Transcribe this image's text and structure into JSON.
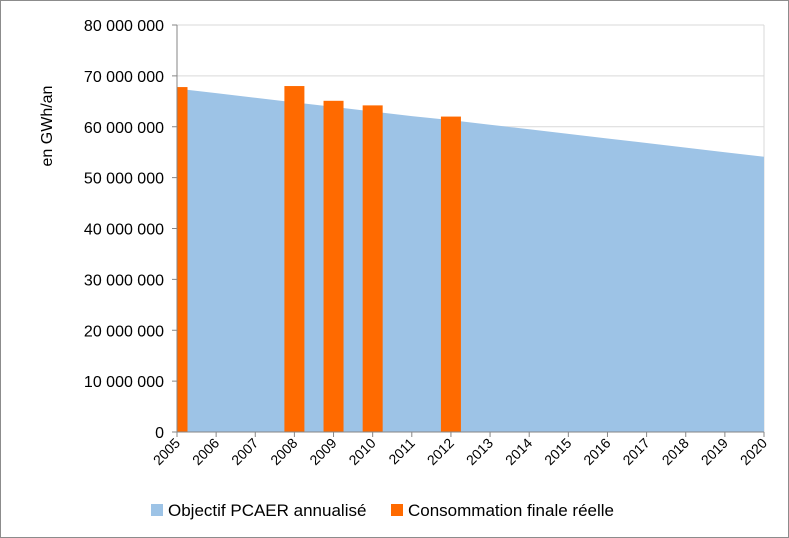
{
  "chart_data": {
    "type": "area+bar",
    "ylabel": "en GWh/an",
    "xlabel": "",
    "title": "",
    "ylim": [
      0,
      80000000
    ],
    "y_ticks": [
      0,
      10000000,
      20000000,
      30000000,
      40000000,
      50000000,
      60000000,
      70000000,
      80000000
    ],
    "y_tick_labels": [
      "0",
      "10 000 000",
      "20 000 000",
      "30 000 000",
      "40 000 000",
      "50 000 000",
      "60 000 000",
      "70 000 000",
      "80 000 000"
    ],
    "categories": [
      "2005",
      "2006",
      "2007",
      "2008",
      "2009",
      "2010",
      "2011",
      "2012",
      "2013",
      "2014",
      "2015",
      "2016",
      "2017",
      "2018",
      "2019",
      "2020"
    ],
    "grid": "horizontal",
    "legend_position": "bottom",
    "series": [
      {
        "name": "Objectif PCAER annualisé",
        "type": "area",
        "color": "#9dc3e6",
        "values": [
          67500000,
          66600000,
          65700000,
          64800000,
          63900000,
          63000000,
          62100000,
          61300000,
          60400000,
          59500000,
          58600000,
          57700000,
          56800000,
          55900000,
          55000000,
          54100000
        ]
      },
      {
        "name": "Consommation finale réelle",
        "type": "bar",
        "color": "#ff6a00",
        "values": [
          67800000,
          null,
          null,
          68000000,
          65100000,
          64200000,
          null,
          62000000,
          null,
          null,
          null,
          null,
          null,
          null,
          null,
          null
        ]
      }
    ]
  }
}
